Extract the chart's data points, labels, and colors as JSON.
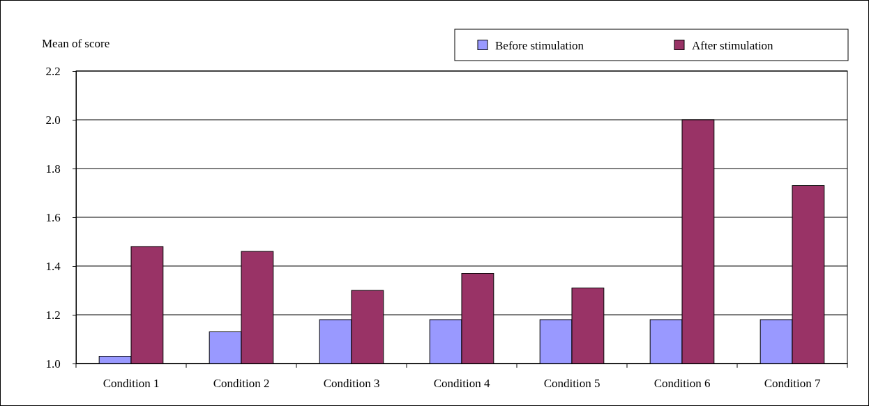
{
  "chart_data": {
    "type": "bar",
    "ylabel": "Mean of score",
    "categories": [
      "Condition 1",
      "Condition 2",
      "Condition 3",
      "Condition 4",
      "Condition 5",
      "Condition 6",
      "Condition 7"
    ],
    "series": [
      {
        "name": "Before stimulation",
        "color": "#9999ff",
        "values": [
          1.03,
          1.13,
          1.18,
          1.18,
          1.18,
          1.18,
          1.18
        ]
      },
      {
        "name": "After stimulation",
        "color": "#993366",
        "values": [
          1.48,
          1.46,
          1.3,
          1.37,
          1.31,
          2.0,
          1.73
        ]
      }
    ],
    "ylim": [
      1.0,
      2.2
    ],
    "yticks": [
      {
        "value": 1.0,
        "label": "1.0"
      },
      {
        "value": 1.2,
        "label": "1.2"
      },
      {
        "value": 1.4,
        "label": "1.4"
      },
      {
        "value": 1.6,
        "label": "1.6"
      },
      {
        "value": 1.8,
        "label": "1.8"
      },
      {
        "value": 2.0,
        "label": "2.0"
      },
      {
        "value": 2.2,
        "label": "2.2"
      }
    ],
    "grid": "y",
    "legend": "top right"
  }
}
